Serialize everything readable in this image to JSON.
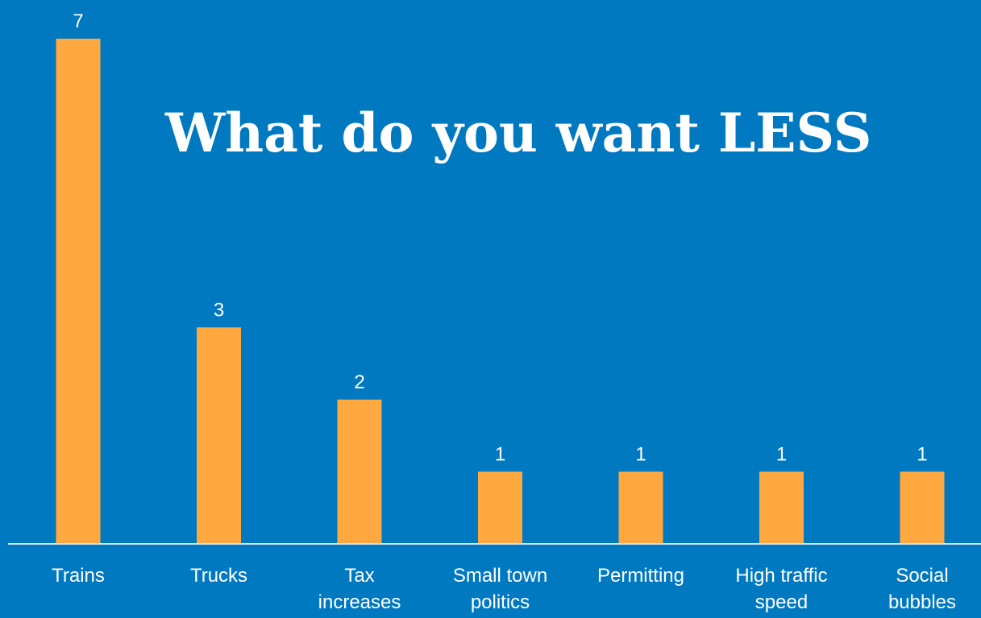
{
  "colors": {
    "background": "#0079c0",
    "bar": "#ffa840",
    "text": "#ffffff",
    "axis": "#d4e6f2"
  },
  "chart_data": {
    "type": "bar",
    "title": "What do you want LESS",
    "categories": [
      [
        "Trains"
      ],
      [
        "Trucks"
      ],
      [
        "Tax",
        "increases"
      ],
      [
        "Small town",
        "politics"
      ],
      [
        "Permitting"
      ],
      [
        "High traffic",
        "speed"
      ],
      [
        "Social",
        "bubbles"
      ]
    ],
    "values": [
      7,
      3,
      2,
      1,
      1,
      1,
      1
    ],
    "data_labels": true,
    "ylim": [
      0,
      7
    ],
    "grid": false,
    "xlabel": "",
    "ylabel": ""
  }
}
